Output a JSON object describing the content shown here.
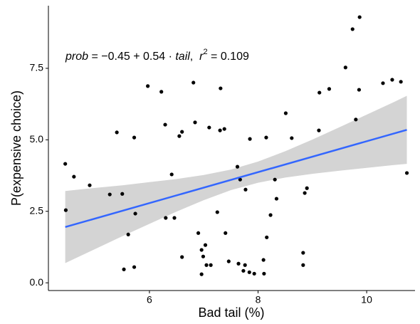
{
  "chart_data": {
    "type": "scatter",
    "xlabel": "Bad tail (%)",
    "ylabel": "P(expensive choice)",
    "annotation": [
      "prob",
      " = −0.45 + 0.54 · ",
      "tail",
      ",  ",
      "r",
      "2",
      " = 0.109"
    ],
    "xlim": [
      4.14,
      10.89
    ],
    "ylim": [
      -0.27,
      9.69
    ],
    "xticks": [
      6,
      8,
      10
    ],
    "yticks": [
      {
        "value": 0,
        "label": "0.0"
      },
      {
        "value": 2.5,
        "label": "2.5"
      },
      {
        "value": 5,
        "label": "5.0"
      },
      {
        "value": 7.5,
        "label": "7.5"
      }
    ],
    "color": "#000000",
    "x": [
      4.45,
      4.46,
      4.61,
      4.9,
      5.27,
      5.4,
      5.5,
      5.53,
      5.61,
      5.72,
      5.74,
      5.72,
      5.97,
      6.22,
      6.29,
      6.3,
      6.41,
      6.46,
      6.55,
      6.6,
      6.6,
      6.81,
      6.84,
      6.9,
      6.96,
      6.96,
      6.99,
      7.03,
      7.05,
      7.1,
      7.13,
      7.25,
      7.3,
      7.31,
      7.38,
      7.4,
      7.46,
      7.62,
      7.64,
      7.67,
      7.73,
      7.77,
      7.76,
      7.84,
      7.85,
      7.93,
      8.1,
      8.11,
      8.15,
      8.16,
      8.23,
      8.31,
      8.34,
      8.51,
      8.62,
      8.83,
      8.83,
      8.86,
      8.9,
      9.12,
      9.13,
      9.31,
      9.61,
      9.74,
      9.8,
      9.86,
      9.87,
      10.3,
      10.47,
      10.63,
      10.74
    ],
    "values": [
      4.16,
      2.54,
      3.71,
      3.41,
      3.09,
      5.26,
      3.11,
      0.47,
      1.69,
      5.08,
      2.42,
      0.55,
      6.88,
      6.68,
      5.53,
      2.27,
      3.79,
      2.27,
      5.13,
      5.28,
      0.9,
      7.0,
      5.61,
      1.74,
      1.15,
      0.3,
      0.92,
      1.32,
      0.62,
      5.43,
      0.62,
      2.47,
      5.33,
      6.8,
      5.38,
      1.74,
      0.75,
      4.06,
      0.67,
      3.61,
      0.42,
      3.26,
      0.62,
      0.37,
      5.03,
      0.32,
      0.8,
      0.32,
      5.08,
      1.59,
      2.37,
      3.61,
      2.94,
      5.93,
      5.06,
      1.05,
      0.62,
      3.14,
      3.31,
      5.33,
      6.65,
      6.78,
      7.53,
      8.87,
      5.71,
      6.75,
      9.29,
      6.98,
      7.1,
      7.03,
      3.84
    ],
    "fit": {
      "x": [
        4.45,
        10.74
      ],
      "values": [
        1.95,
        5.35
      ],
      "color": "#3366ff"
    },
    "band": {
      "x": [
        4.45,
        5,
        5.5,
        6,
        6.5,
        7,
        7.5,
        8,
        8.5,
        9,
        9.5,
        10,
        10.5,
        10.74
      ],
      "lower": [
        0.69,
        1.18,
        1.63,
        2.06,
        2.49,
        2.89,
        3.24,
        3.5,
        3.68,
        3.81,
        3.92,
        4.02,
        4.12,
        4.16
      ],
      "upper": [
        3.21,
        3.32,
        3.41,
        3.52,
        3.63,
        3.77,
        3.96,
        4.24,
        4.6,
        5.01,
        5.44,
        5.88,
        6.32,
        6.54
      ],
      "color": "#d4d4d4"
    }
  }
}
